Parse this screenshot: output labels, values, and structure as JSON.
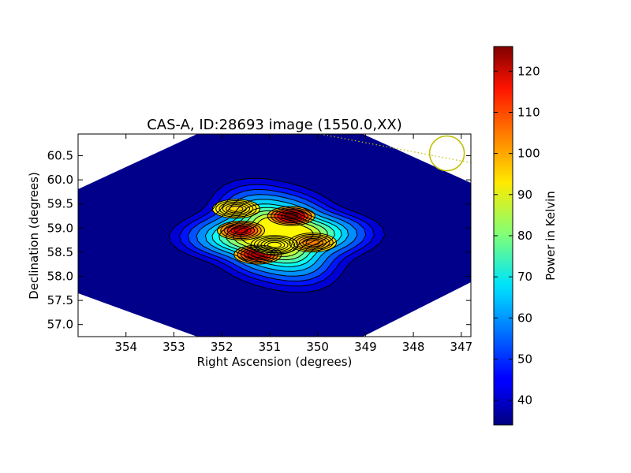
{
  "chart_data": {
    "type": "heatmap",
    "title": "CAS-A, ID:28693 image (1550.0,XX)",
    "xlabel": "Right Ascension (degrees)",
    "ylabel": "Declination (degrees)",
    "xlim": [
      355.0,
      346.8
    ],
    "ylim": [
      56.75,
      60.95
    ],
    "x_ticks": [
      "354",
      "353",
      "352",
      "351",
      "350",
      "349",
      "348",
      "347"
    ],
    "y_ticks": [
      "57.0",
      "57.5",
      "58.0",
      "58.5",
      "59.0",
      "59.5",
      "60.0",
      "60.5"
    ],
    "grid": false,
    "colorbar": {
      "label": "Power in Kelvin",
      "range": [
        34,
        126
      ],
      "colormap": "jet",
      "ticks": [
        "40",
        "50",
        "60",
        "70",
        "80",
        "90",
        "100",
        "110",
        "120"
      ]
    },
    "background_level": 36,
    "features": [
      {
        "ra": 350.55,
        "dec": 59.25,
        "peak": 126
      },
      {
        "ra": 351.25,
        "dec": 58.45,
        "peak": 122
      },
      {
        "ra": 351.6,
        "dec": 58.95,
        "peak": 118
      },
      {
        "ra": 350.1,
        "dec": 58.7,
        "peak": 103
      },
      {
        "ra": 351.7,
        "dec": 59.4,
        "peak": 95
      },
      {
        "ra": 350.9,
        "dec": 58.65,
        "peak": 92
      }
    ],
    "beam_marker": {
      "ra": 347.3,
      "dec": 60.55,
      "color": "#bfbf00"
    }
  }
}
